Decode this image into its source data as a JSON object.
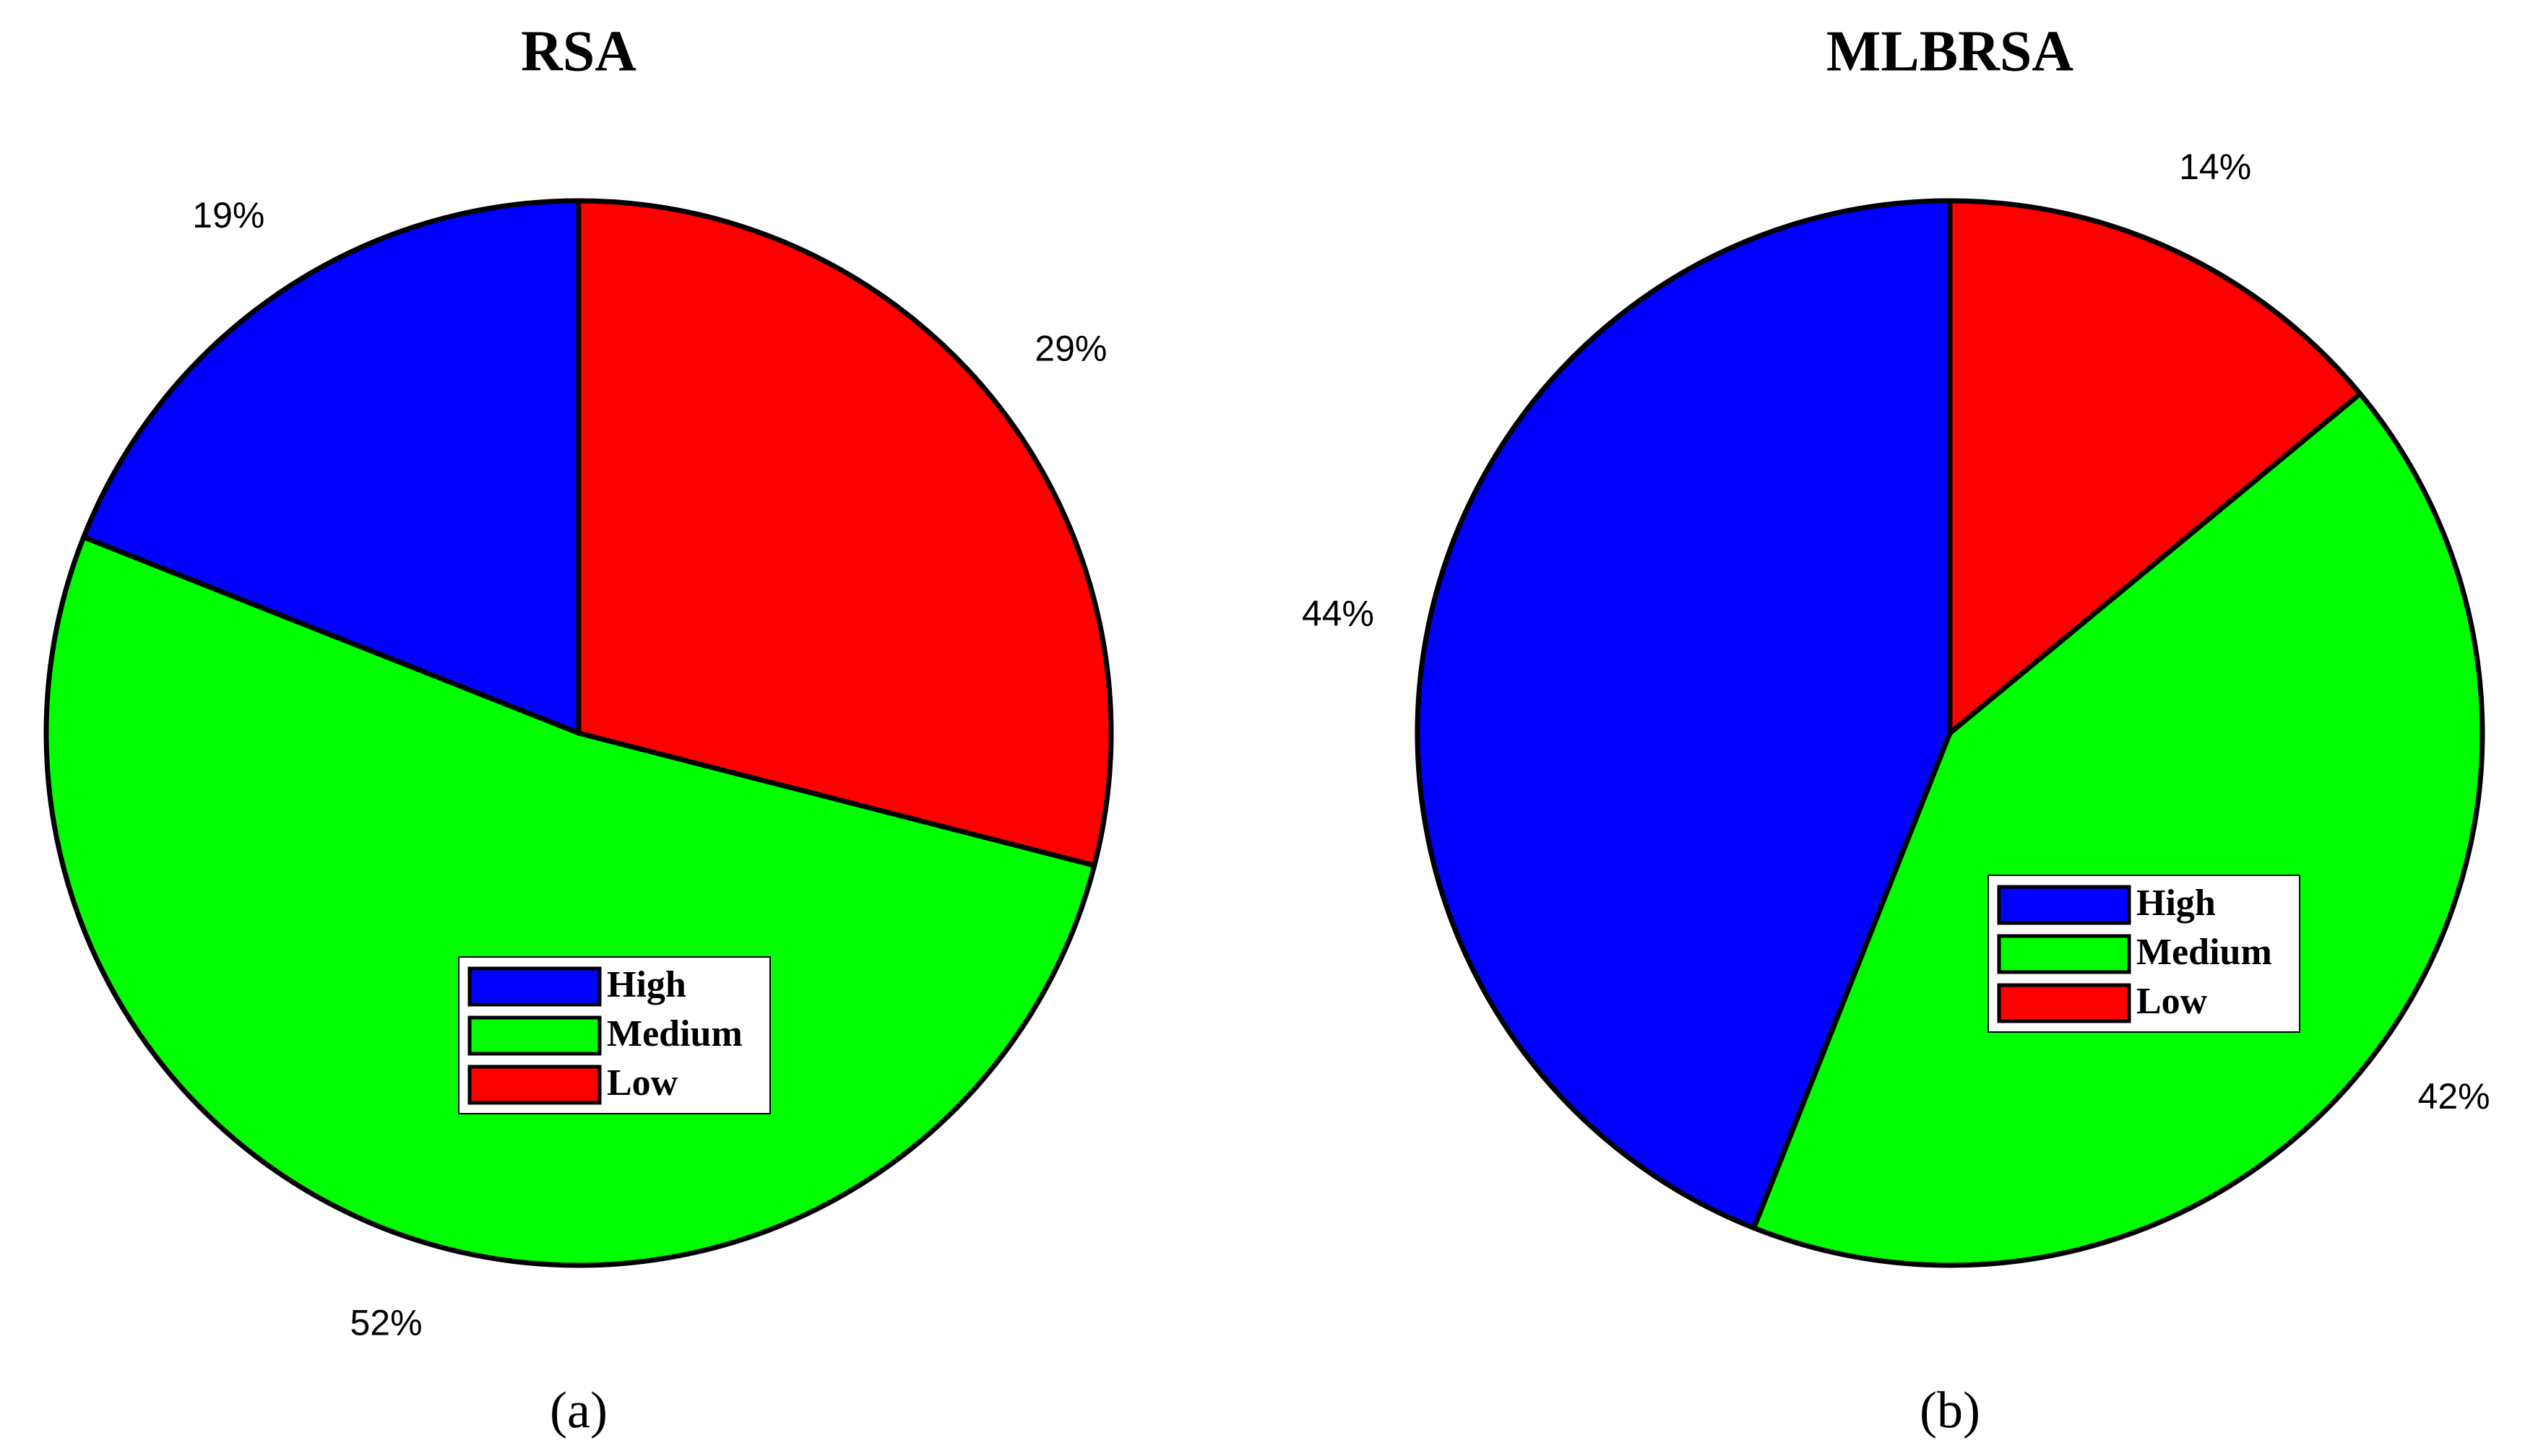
{
  "chart_data": [
    {
      "type": "pie",
      "title": "RSA",
      "panel_label": "(a)",
      "categories": [
        "High",
        "Medium",
        "Low"
      ],
      "values": [
        19,
        52,
        29
      ],
      "value_labels": [
        "19%",
        "52%",
        "29%"
      ],
      "colors": [
        "#0000ff",
        "#00ff00",
        "#ff0000"
      ]
    },
    {
      "type": "pie",
      "title": "MLBRSA",
      "panel_label": "(b)",
      "categories": [
        "High",
        "Medium",
        "Low"
      ],
      "values": [
        44,
        42,
        14
      ],
      "value_labels": [
        "44%",
        "42%",
        "14%"
      ],
      "colors": [
        "#0000ff",
        "#00ff00",
        "#ff0000"
      ]
    }
  ]
}
